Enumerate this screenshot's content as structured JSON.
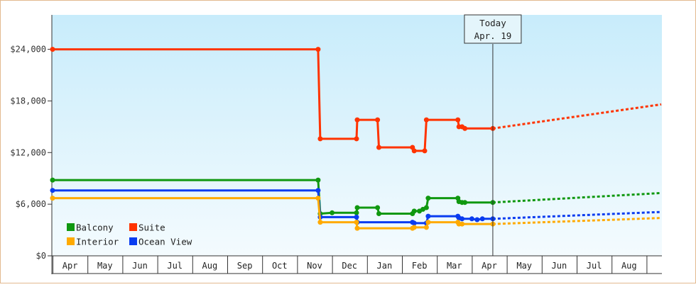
{
  "chart_data": {
    "type": "line",
    "title": "",
    "xlabel": "",
    "ylabel": "",
    "ylim": [
      0,
      28000
    ],
    "y_ticks": [
      "$0",
      "$6,000",
      "$12,000",
      "$18,000",
      "$24,000"
    ],
    "y_tick_values": [
      0,
      6000,
      12000,
      18000,
      24000
    ],
    "x_months": [
      "Apr",
      "May",
      "Jun",
      "Jul",
      "Aug",
      "Sep",
      "Oct",
      "Nov",
      "Dec",
      "Jan",
      "Feb",
      "Mar",
      "Apr",
      "May",
      "Jun",
      "Jul",
      "Aug"
    ],
    "grid": false,
    "legend": "bottom-left",
    "today": {
      "line1": "Today",
      "line2": "Apr. 19",
      "month_index": 12.6
    },
    "series": [
      {
        "name": "Suite",
        "color": "#ff3300",
        "points": [
          [
            0,
            24000
          ],
          [
            7.6,
            24000
          ],
          [
            7.66,
            13600
          ],
          [
            8.7,
            13600
          ],
          [
            8.72,
            15800
          ],
          [
            9.3,
            15800
          ],
          [
            9.34,
            12600
          ],
          [
            10.3,
            12600
          ],
          [
            10.35,
            12200
          ],
          [
            10.65,
            12200
          ],
          [
            10.7,
            15800
          ],
          [
            11.6,
            15800
          ],
          [
            11.63,
            15000
          ],
          [
            11.72,
            15000
          ],
          [
            11.8,
            14800
          ],
          [
            12.6,
            14800
          ]
        ],
        "projection": [
          [
            12.6,
            14800
          ],
          [
            17.42,
            17600
          ]
        ]
      },
      {
        "name": "Balcony",
        "color": "#109810",
        "points": [
          [
            0,
            8800
          ],
          [
            7.6,
            8800
          ],
          [
            7.66,
            4900
          ],
          [
            8.0,
            5000
          ],
          [
            8.7,
            5000
          ],
          [
            8.72,
            5600
          ],
          [
            9.3,
            5600
          ],
          [
            9.34,
            4900
          ],
          [
            10.3,
            4900
          ],
          [
            10.35,
            5200
          ],
          [
            10.5,
            5200
          ],
          [
            10.6,
            5400
          ],
          [
            10.7,
            5600
          ],
          [
            10.75,
            6700
          ],
          [
            11.6,
            6700
          ],
          [
            11.63,
            6300
          ],
          [
            11.72,
            6200
          ],
          [
            11.8,
            6200
          ],
          [
            12.6,
            6200
          ]
        ],
        "projection": [
          [
            12.6,
            6200
          ],
          [
            17.42,
            7300
          ]
        ]
      },
      {
        "name": "Ocean View",
        "color": "#0a3cf0",
        "points": [
          [
            0,
            7600
          ],
          [
            7.6,
            7600
          ],
          [
            7.66,
            4500
          ],
          [
            8.7,
            4500
          ],
          [
            8.72,
            3900
          ],
          [
            10.3,
            3900
          ],
          [
            10.35,
            3800
          ],
          [
            10.7,
            3800
          ],
          [
            10.75,
            4600
          ],
          [
            11.6,
            4600
          ],
          [
            11.63,
            4400
          ],
          [
            11.72,
            4300
          ],
          [
            12.0,
            4300
          ],
          [
            12.15,
            4200
          ],
          [
            12.3,
            4300
          ],
          [
            12.6,
            4300
          ]
        ],
        "projection": [
          [
            12.6,
            4300
          ],
          [
            17.42,
            5100
          ]
        ]
      },
      {
        "name": "Interior",
        "color": "#ffaa00",
        "points": [
          [
            0,
            6700
          ],
          [
            7.6,
            6700
          ],
          [
            7.66,
            3900
          ],
          [
            8.7,
            3900
          ],
          [
            8.72,
            3200
          ],
          [
            10.3,
            3200
          ],
          [
            10.35,
            3300
          ],
          [
            10.7,
            3300
          ],
          [
            10.75,
            3900
          ],
          [
            11.6,
            3900
          ],
          [
            11.63,
            3700
          ],
          [
            11.72,
            3700
          ],
          [
            12.6,
            3700
          ]
        ],
        "projection": [
          [
            12.6,
            3700
          ],
          [
            17.42,
            4400
          ]
        ]
      }
    ],
    "legend_rows": [
      [
        {
          "name": "Balcony",
          "color": "#109810"
        },
        {
          "name": "Suite",
          "color": "#ff3300"
        }
      ],
      [
        {
          "name": "Interior",
          "color": "#ffaa00"
        },
        {
          "name": "Ocean View",
          "color": "#0a3cf0"
        }
      ]
    ]
  }
}
